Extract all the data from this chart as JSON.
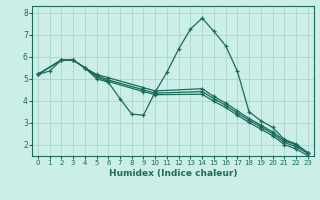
{
  "xlabel": "Humidex (Indice chaleur)",
  "bg_color": "#cceee8",
  "grid_color": "#aad4cc",
  "line_color": "#1a6b5a",
  "xlim": [
    -0.5,
    23.5
  ],
  "ylim": [
    1.5,
    8.3
  ],
  "yticks": [
    2,
    3,
    4,
    5,
    6,
    7,
    8
  ],
  "xticks": [
    0,
    1,
    2,
    3,
    4,
    5,
    6,
    7,
    8,
    9,
    10,
    11,
    12,
    13,
    14,
    15,
    16,
    17,
    18,
    19,
    20,
    21,
    22,
    23
  ],
  "series": [
    {
      "x": [
        0,
        1,
        2,
        3,
        4,
        5,
        6,
        7,
        8,
        9,
        10,
        11,
        12,
        13,
        14,
        15,
        16,
        17,
        18,
        19,
        20,
        21,
        22,
        23
      ],
      "y": [
        5.2,
        5.35,
        5.85,
        5.85,
        5.5,
        5.0,
        4.85,
        4.1,
        3.4,
        3.35,
        4.4,
        5.3,
        6.35,
        7.25,
        7.75,
        7.15,
        6.5,
        5.35,
        3.5,
        3.1,
        2.8,
        2.25,
        2.05,
        1.65
      ]
    },
    {
      "x": [
        0,
        2,
        3,
        4,
        5,
        6,
        9,
        10,
        14,
        15,
        16,
        17,
        18,
        19,
        20,
        21,
        22,
        23
      ],
      "y": [
        5.2,
        5.85,
        5.85,
        5.5,
        5.2,
        5.05,
        4.6,
        4.45,
        4.55,
        4.2,
        3.9,
        3.55,
        3.2,
        2.9,
        2.6,
        2.2,
        2.0,
        1.65
      ]
    },
    {
      "x": [
        0,
        2,
        3,
        4,
        5,
        6,
        9,
        10,
        14,
        15,
        16,
        17,
        18,
        19,
        20,
        21,
        22,
        23
      ],
      "y": [
        5.2,
        5.85,
        5.85,
        5.5,
        5.15,
        4.95,
        4.5,
        4.35,
        4.42,
        4.1,
        3.8,
        3.45,
        3.12,
        2.82,
        2.52,
        2.12,
        1.92,
        1.62
      ]
    },
    {
      "x": [
        0,
        2,
        3,
        4,
        5,
        6,
        9,
        10,
        14,
        15,
        16,
        17,
        18,
        19,
        20,
        21,
        22,
        23
      ],
      "y": [
        5.2,
        5.85,
        5.85,
        5.5,
        5.1,
        4.88,
        4.42,
        4.28,
        4.3,
        3.98,
        3.7,
        3.35,
        3.02,
        2.72,
        2.42,
        2.02,
        1.82,
        1.52
      ]
    }
  ],
  "marker": "+",
  "markersize": 3.5,
  "linewidth": 0.9
}
